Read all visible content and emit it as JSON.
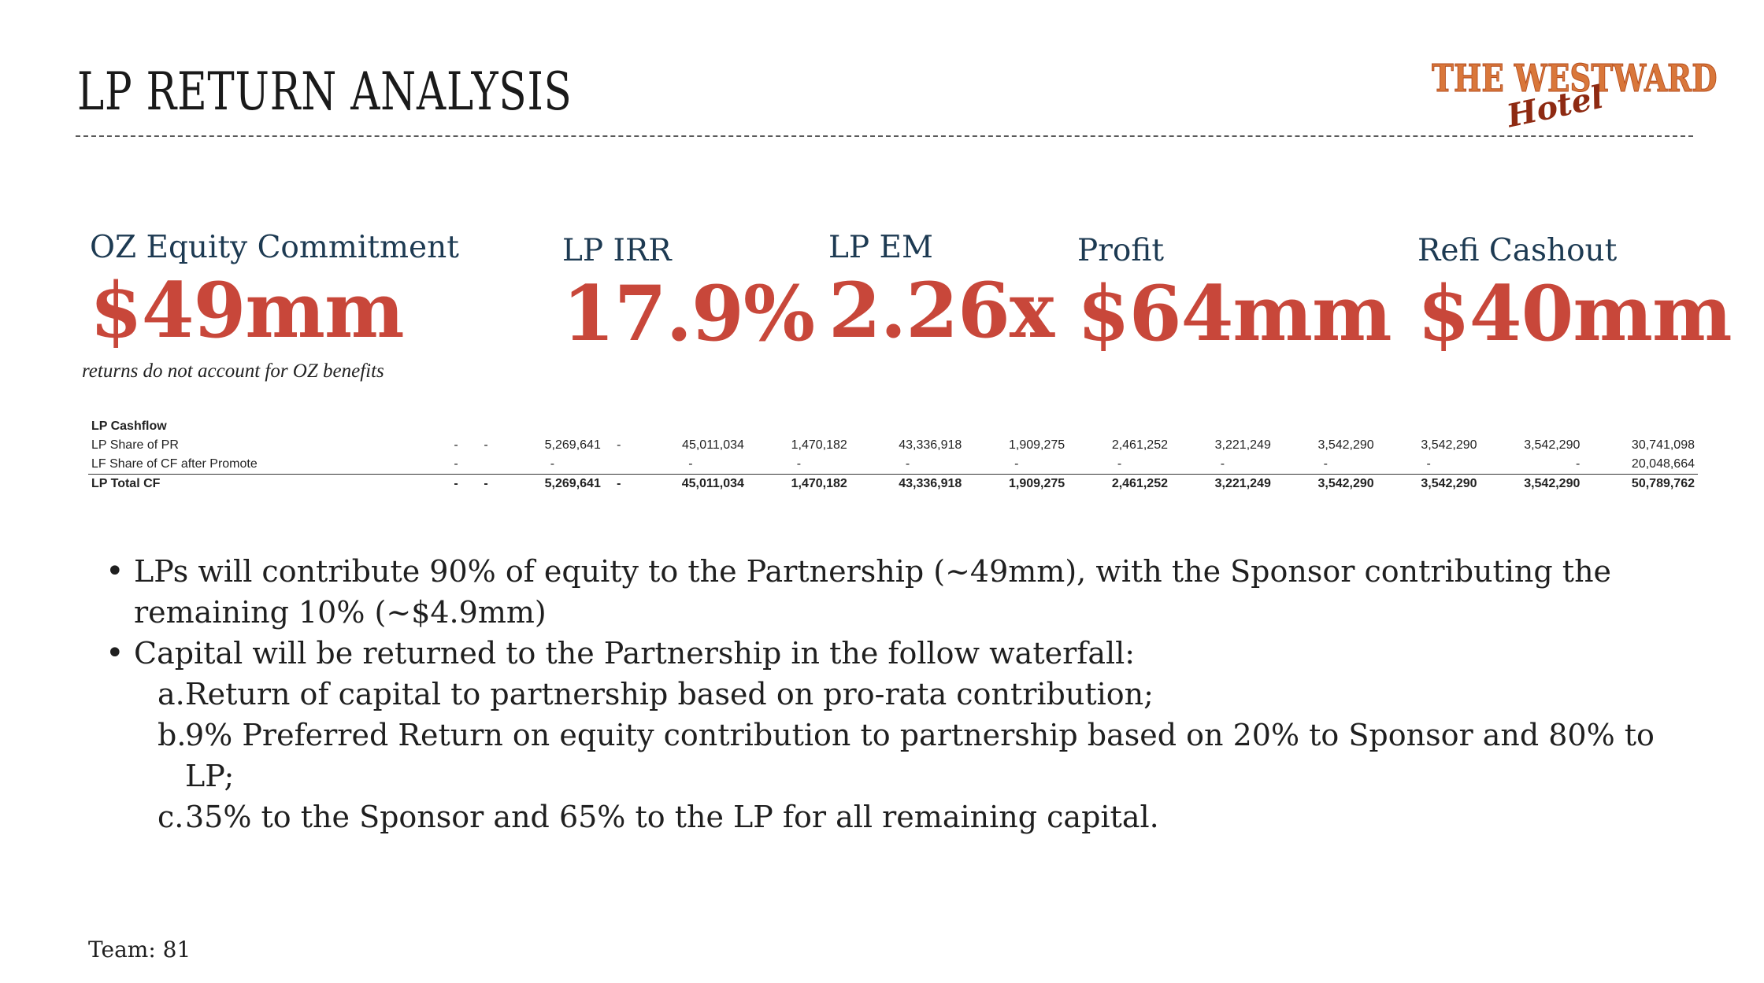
{
  "slide": {
    "title": "LP RETURN ANALYSIS",
    "logo_line1": "THE WESTWARD",
    "logo_line2": "Hotel"
  },
  "metrics": [
    {
      "label": "OZ Equity Commitment",
      "value": "$49mm"
    },
    {
      "label": "LP IRR",
      "value": "17.9%"
    },
    {
      "label": "LP EM",
      "value": "2.26x"
    },
    {
      "label": "Profit",
      "value": "$64mm"
    },
    {
      "label": "Refi Cashout",
      "value": "$40mm"
    }
  ],
  "note": "returns do not account for OZ benefits",
  "cashflow": {
    "header": "LP Cashflow",
    "rows": [
      {
        "label": "LP Share of PR",
        "cells": [
          "-",
          "-",
          "5,269,641",
          "-",
          "45,011,034",
          "1,470,182",
          "43,336,918",
          "1,909,275",
          "2,461,252",
          "3,221,249",
          "3,542,290",
          "3,542,290",
          "3,542,290",
          "30,741,098"
        ]
      },
      {
        "label": "LF Share of CF after Promote",
        "cells": [
          "-",
          "",
          "-",
          "",
          "-",
          "-",
          "-",
          "-",
          "-",
          "-",
          "-",
          "-",
          "-",
          "20,048,664"
        ]
      },
      {
        "label": "LP Total CF",
        "cells": [
          "-",
          "-",
          "5,269,641",
          "-",
          "45,011,034",
          "1,470,182",
          "43,336,918",
          "1,909,275",
          "2,461,252",
          "3,221,249",
          "3,542,290",
          "3,542,290",
          "3,542,290",
          "50,789,762"
        ]
      }
    ]
  },
  "bullets": [
    "LPs will contribute 90% of equity to the Partnership (~49mm), with the Sponsor contributing the remaining 10% (~$4.9mm)",
    "Capital will be returned to the Partnership in the follow waterfall:"
  ],
  "waterfall": [
    {
      "letter": "a.",
      "text": "Return of capital to partnership based on pro-rata contribution;"
    },
    {
      "letter": "b.",
      "text": "9% Preferred Return on equity contribution to partnership based on 20% to Sponsor and 80% to LP;"
    },
    {
      "letter": "c.",
      "text": "35% to the Sponsor and 65% to the LP for all remaining capital."
    }
  ],
  "team": "Team: 81"
}
